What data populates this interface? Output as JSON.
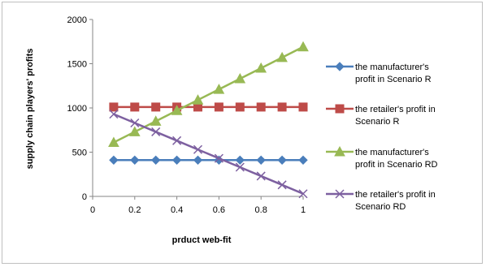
{
  "chart_data": {
    "type": "line",
    "title": "",
    "xlabel": "prduct web-fit",
    "ylabel": "supply chain players' profits",
    "xlim": [
      0,
      1
    ],
    "ylim": [
      0,
      2000
    ],
    "x_ticks": [
      "0",
      "0.2",
      "0.4",
      "0.6",
      "0.8",
      "1"
    ],
    "y_ticks": [
      "0",
      "500",
      "1000",
      "1500",
      "2000"
    ],
    "grid": false,
    "legend_position": "right",
    "x": [
      0.1,
      0.2,
      0.3,
      0.4,
      0.5,
      0.6,
      0.7,
      0.8,
      0.9,
      1.0
    ],
    "series": [
      {
        "name": "the manufacturer's profit in Scenario R",
        "legend_lines": [
          "the manufacturer's",
          "profit in Scenario R"
        ],
        "color": "#4a7ebb",
        "marker": "diamond",
        "values": [
          410,
          410,
          410,
          410,
          410,
          410,
          410,
          410,
          410,
          410
        ]
      },
      {
        "name": "the retailer's profit in Scenario R",
        "legend_lines": [
          "the retailer's profit in",
          "Scenario R"
        ],
        "color": "#be4b48",
        "marker": "square",
        "values": [
          1010,
          1010,
          1010,
          1010,
          1010,
          1010,
          1010,
          1010,
          1010,
          1010
        ]
      },
      {
        "name": "the manufacturer's profit in Scenario RD",
        "legend_lines": [
          "the manufacturer's",
          "profit in Scenario RD"
        ],
        "color": "#98b954",
        "marker": "triangle",
        "values": [
          610,
          730,
          850,
          970,
          1090,
          1210,
          1330,
          1450,
          1570,
          1690
        ]
      },
      {
        "name": "the retailer's profit in Scenario RD",
        "legend_lines": [
          "the retailer's profit in",
          "Scenario RD"
        ],
        "color": "#7d60a0",
        "marker": "x",
        "values": [
          930,
          830,
          730,
          630,
          530,
          430,
          330,
          230,
          130,
          30
        ]
      }
    ]
  }
}
